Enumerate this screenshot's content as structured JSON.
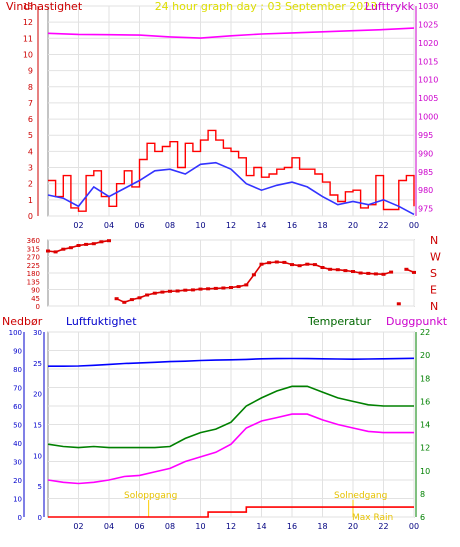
{
  "header": {
    "left_label": "Vindhastighet",
    "title": "24 hour graph day : 03 September 2023",
    "right_label": "Lufttrykk"
  },
  "colors": {
    "wind": "#ff0000",
    "wind_avg": "#3333ff",
    "pressure": "#ff00ff",
    "direction": "#dd0000",
    "humidity": "#0000ff",
    "temperature": "#008000",
    "dewpoint": "#ff00ff",
    "rain": "#ff0000",
    "sun_event": "#ffcc00"
  },
  "chart_data": [
    {
      "type": "line",
      "id": "wind_pressure",
      "x_ticks": [
        "02",
        "04",
        "06",
        "08",
        "10",
        "12",
        "14",
        "16",
        "18",
        "20",
        "22",
        "00"
      ],
      "y_left_ticks": [
        0,
        1,
        2,
        3,
        4,
        5,
        6,
        7,
        8,
        9,
        10,
        11,
        12,
        13
      ],
      "y_right_ticks": [
        975,
        980,
        985,
        990,
        995,
        1000,
        1005,
        1010,
        1015,
        1020,
        1025,
        1030
      ],
      "ylim_left": [
        0,
        13
      ],
      "ylim_right": [
        973,
        1030
      ],
      "series": [
        {
          "name": "Vindhastighet",
          "axis": "left",
          "x": [
            0,
            0.5,
            1,
            1.5,
            2,
            2.5,
            3,
            3.5,
            4,
            4.5,
            5,
            5.5,
            6,
            6.5,
            7,
            7.5,
            8,
            8.5,
            9,
            9.5,
            10,
            10.5,
            11,
            11.5,
            12,
            12.5,
            13,
            13.5,
            14,
            14.5,
            15,
            15.5,
            16,
            16.5,
            17,
            17.5,
            18,
            18.5,
            19,
            19.5,
            20,
            20.5,
            21,
            21.5,
            22,
            22.5,
            23,
            23.5,
            24
          ],
          "y": [
            2.2,
            1.2,
            2.5,
            0.5,
            0.3,
            2.5,
            2.8,
            1.2,
            0.6,
            2.0,
            2.8,
            1.8,
            3.5,
            4.5,
            4.0,
            4.3,
            4.6,
            3.0,
            4.5,
            4.0,
            4.7,
            5.3,
            4.7,
            4.2,
            4.0,
            3.6,
            2.5,
            3.0,
            2.4,
            2.6,
            2.9,
            3.0,
            3.6,
            2.9,
            2.9,
            2.6,
            2.1,
            1.3,
            0.9,
            1.5,
            1.6,
            0.5,
            0.7,
            2.5,
            0.4,
            0.4,
            2.2,
            2.5,
            0.6
          ]
        },
        {
          "name": "Middelvind",
          "axis": "left",
          "x": [
            0,
            1,
            2,
            3,
            4,
            5,
            6,
            7,
            8,
            9,
            10,
            11,
            12,
            13,
            14,
            15,
            16,
            17,
            18,
            19,
            20,
            21,
            22,
            23,
            24
          ],
          "y": [
            1.3,
            1.1,
            0.6,
            1.8,
            1.2,
            1.7,
            2.2,
            2.8,
            2.9,
            2.6,
            3.2,
            3.3,
            2.9,
            2.0,
            1.6,
            1.9,
            2.1,
            1.8,
            1.2,
            0.7,
            0.9,
            0.7,
            1.0,
            0.6,
            0.1
          ]
        },
        {
          "name": "Lufttrykk",
          "axis": "right",
          "x": [
            0,
            2,
            4,
            6,
            8,
            10,
            12,
            14,
            16,
            18,
            20,
            22,
            24
          ],
          "y": [
            1022.6,
            1022.3,
            1022.2,
            1022.1,
            1021.6,
            1021.3,
            1021.9,
            1022.4,
            1022.7,
            1023.0,
            1023.3,
            1023.6,
            1024.0
          ]
        }
      ]
    },
    {
      "type": "scatter",
      "id": "wind_direction",
      "x_ticks": [],
      "y_left_ticks": [
        0,
        45,
        90,
        135,
        180,
        225,
        270,
        315,
        360
      ],
      "y_right_labels": [
        "N",
        "W",
        "S",
        "E",
        "N"
      ],
      "ylim": [
        0,
        360
      ],
      "series": [
        {
          "name": "Vindretning",
          "x": [
            0,
            0.5,
            1,
            1.5,
            2,
            2.5,
            3,
            3.5,
            4,
            4.5,
            5,
            5.5,
            6,
            6.5,
            7,
            7.5,
            8,
            8.5,
            9,
            9.5,
            10,
            10.5,
            11,
            11.5,
            12,
            12.5,
            13,
            13.5,
            14,
            14.5,
            15,
            15.5,
            16,
            16.5,
            17,
            17.5,
            18,
            18.5,
            19,
            19.5,
            20,
            20.5,
            21,
            21.5,
            22,
            22.5,
            23,
            23.5,
            24
          ],
          "y": [
            300,
            295,
            310,
            318,
            330,
            336,
            340,
            350,
            356,
            40,
            20,
            35,
            45,
            60,
            70,
            76,
            80,
            82,
            86,
            88,
            92,
            94,
            96,
            98,
            101,
            106,
            115,
            170,
            228,
            236,
            240,
            238,
            226,
            220,
            228,
            226,
            210,
            200,
            198,
            193,
            188,
            180,
            178,
            175,
            173,
            185,
            12,
            200,
            183
          ]
        }
      ]
    },
    {
      "type": "line",
      "id": "humidity_temperature",
      "x_ticks": [
        "02",
        "04",
        "06",
        "08",
        "10",
        "12",
        "14",
        "16",
        "18",
        "20",
        "22",
        "00"
      ],
      "y_left_ticks": [
        0,
        10,
        20,
        30,
        40,
        50,
        60,
        70,
        80,
        90,
        100
      ],
      "y_inner_ticks": [
        0,
        5,
        10,
        15,
        20,
        25,
        30
      ],
      "y_right_ticks": [
        6,
        8,
        10,
        12,
        14,
        16,
        18,
        20,
        22
      ],
      "ylim_left": [
        0,
        100
      ],
      "ylim_right": [
        6,
        22
      ],
      "legend": {
        "rain": "Nedbør",
        "humidity": "Luftfuktighet",
        "temperature": "Temperatur",
        "dewpoint": "Duggpunkt"
      },
      "annotations": {
        "sunrise": "Soloppgang",
        "sunset": "Solnedgang",
        "max_rain": "Max Rain"
      },
      "series": [
        {
          "name": "Luftfuktighet",
          "axis": "left",
          "x": [
            0,
            1,
            2,
            3,
            4,
            5,
            6,
            7,
            8,
            9,
            10,
            11,
            12,
            13,
            14,
            15,
            16,
            17,
            18,
            19,
            20,
            21,
            22,
            23,
            24
          ],
          "y": [
            81.5,
            81.5,
            81.6,
            82.0,
            82.5,
            83.0,
            83.3,
            83.6,
            84.0,
            84.2,
            84.6,
            84.8,
            85.0,
            85.2,
            85.5,
            85.6,
            85.7,
            85.6,
            85.5,
            85.4,
            85.3,
            85.4,
            85.5,
            85.6,
            85.8
          ]
        },
        {
          "name": "Temperatur",
          "axis": "right",
          "x": [
            0,
            1,
            2,
            3,
            4,
            5,
            6,
            7,
            8,
            9,
            10,
            11,
            12,
            13,
            14,
            15,
            16,
            17,
            18,
            19,
            20,
            21,
            22,
            23,
            24
          ],
          "y": [
            12.3,
            12.1,
            12.0,
            12.1,
            12.0,
            12.0,
            12.0,
            12.0,
            12.1,
            12.8,
            13.3,
            13.6,
            14.2,
            15.6,
            16.3,
            16.9,
            17.3,
            17.3,
            16.8,
            16.3,
            16.0,
            15.7,
            15.6,
            15.6,
            15.6
          ]
        },
        {
          "name": "Duggpunkt",
          "axis": "right",
          "x": [
            0,
            1,
            2,
            3,
            4,
            5,
            6,
            7,
            8,
            9,
            10,
            11,
            12,
            13,
            14,
            15,
            16,
            17,
            18,
            19,
            20,
            21,
            22,
            23,
            24
          ],
          "y": [
            9.2,
            9.0,
            8.9,
            9.0,
            9.2,
            9.5,
            9.6,
            9.9,
            10.2,
            10.8,
            11.2,
            11.6,
            12.3,
            13.7,
            14.3,
            14.6,
            14.9,
            14.9,
            14.4,
            14.0,
            13.7,
            13.4,
            13.3,
            13.3,
            13.3
          ]
        },
        {
          "name": "Nedbør",
          "axis": "inner",
          "x": [
            0,
            10,
            10.5,
            12.5,
            13,
            24
          ],
          "y": [
            0,
            0,
            0.8,
            0.8,
            1.6,
            1.6
          ]
        }
      ]
    }
  ]
}
